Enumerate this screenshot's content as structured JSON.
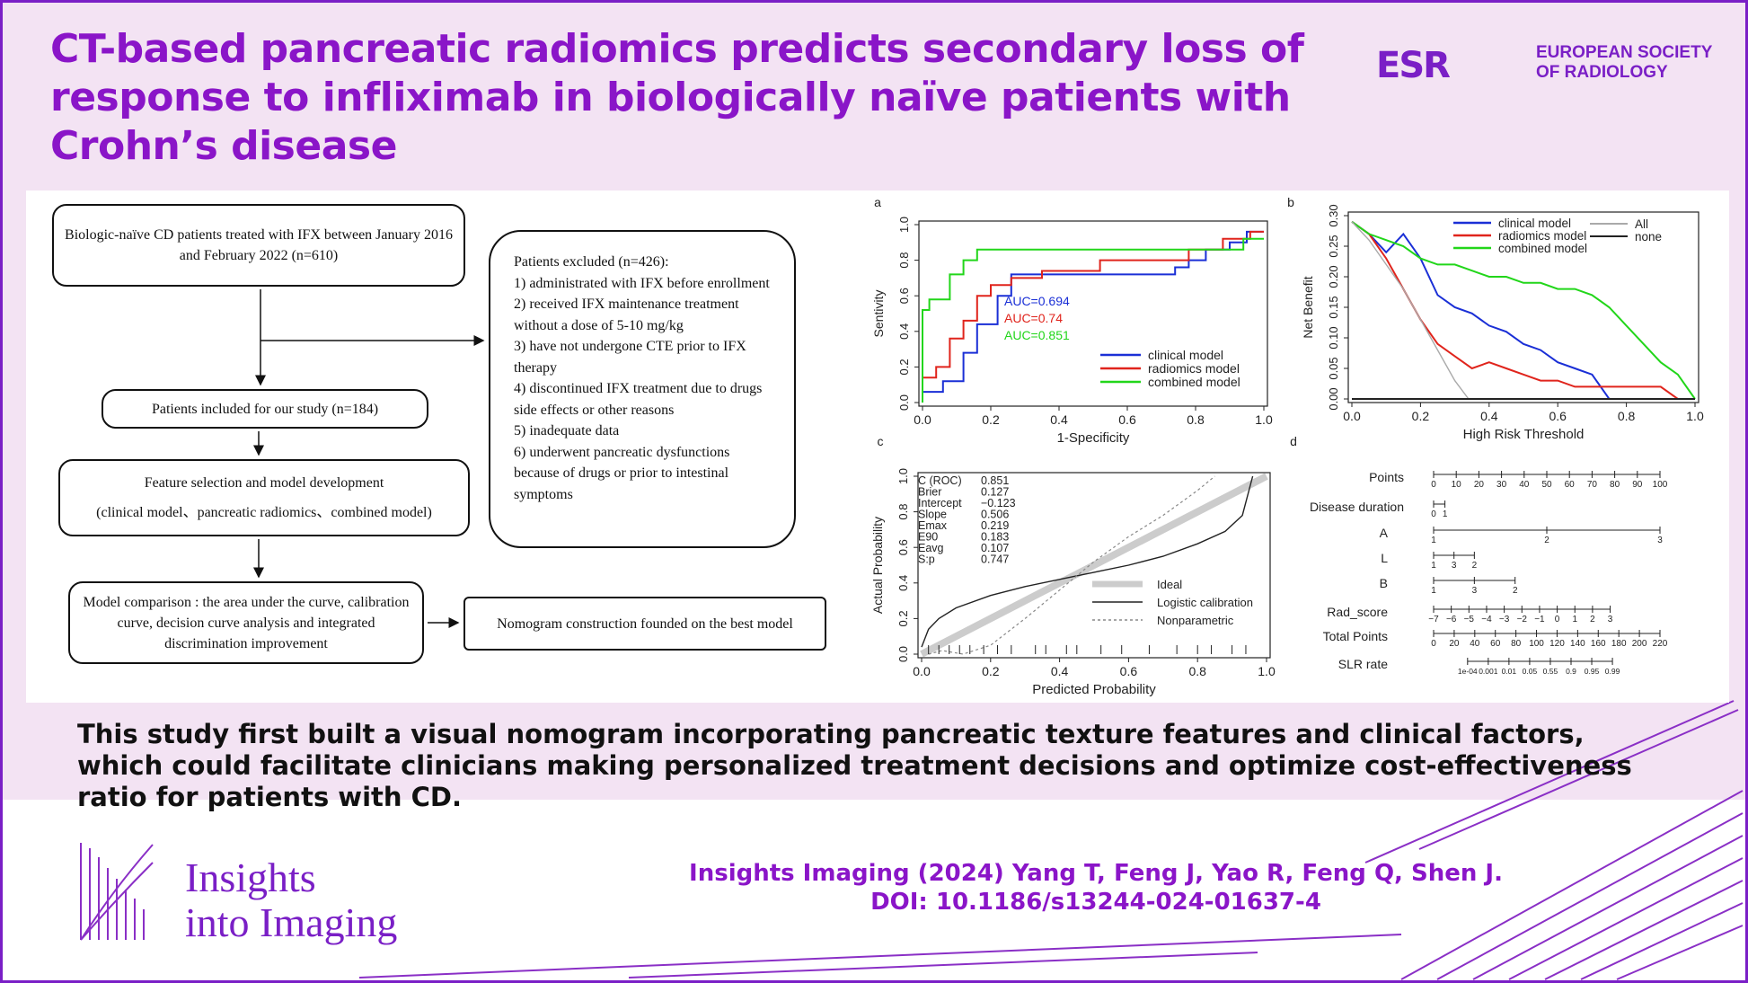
{
  "title": "CT-based pancreatic radiomics predicts secondary loss of response to infliximab in biologically naïve patients with Crohn’s disease",
  "logo": {
    "mark": "ESR",
    "line1": "EUROPEAN SOCIETY",
    "line2": "OF RADIOLOGY"
  },
  "flowchart": {
    "box1": "Biologic-naïve CD patients treated with IFX between January 2016 and February 2022 (n=610)",
    "box2": "Patients included for our study (n=184)",
    "box3_line1": "Feature selection and model development",
    "box3_line2": "(clinical model、pancreatic radiomics、combined model)",
    "box4": "Model comparison : the area under the curve, calibration curve, decision curve analysis and integrated discrimination improvement",
    "box5": "Nomogram construction founded on the best model",
    "excluded_title": "Patients excluded (n=426):",
    "excluded_items": [
      "1) administrated with IFX before enrollment",
      "2) received IFX maintenance treatment without a dose of 5-10 mg/kg",
      "3) have not undergone CTE prior to IFX therapy",
      "4) discontinued IFX treatment due to drugs side effects or other reasons",
      "5) inadequate data",
      "6) underwent pancreatic dysfunctions because of drugs or prior to intestinal symptoms"
    ]
  },
  "chart_data": [
    {
      "type": "line",
      "panel": "a",
      "xlabel": "1-Specificity",
      "ylabel": "Sentivity",
      "xlim": [
        0,
        1
      ],
      "ylim": [
        0,
        1
      ],
      "xticks": [
        "0.0",
        "0.2",
        "0.4",
        "0.6",
        "0.8",
        "1.0"
      ],
      "yticks": [
        "0.0",
        "0.2",
        "0.4",
        "0.6",
        "0.8",
        "1.0"
      ],
      "annotations": [
        "AUC=0.694",
        "AUC=0.74",
        "AUC=0.851"
      ],
      "legend": "bottom-right",
      "series": [
        {
          "name": "clinical model",
          "color": "#1a2fd6",
          "x": [
            0,
            0,
            0.06,
            0.06,
            0.12,
            0.12,
            0.16,
            0.16,
            0.22,
            0.22,
            0.26,
            0.26,
            0.74,
            0.74,
            0.78,
            0.78,
            0.83,
            0.83,
            0.9,
            0.9,
            0.95,
            0.95,
            1
          ],
          "y": [
            0,
            0.06,
            0.06,
            0.12,
            0.12,
            0.28,
            0.28,
            0.44,
            0.44,
            0.6,
            0.6,
            0.72,
            0.72,
            0.76,
            0.76,
            0.8,
            0.8,
            0.86,
            0.86,
            0.9,
            0.9,
            0.96,
            0.96
          ]
        },
        {
          "name": "radiomics model",
          "color": "#e0241c",
          "x": [
            0,
            0,
            0.04,
            0.04,
            0.08,
            0.08,
            0.12,
            0.12,
            0.16,
            0.16,
            0.2,
            0.2,
            0.26,
            0.26,
            0.35,
            0.35,
            0.52,
            0.52,
            0.78,
            0.78,
            0.88,
            0.88,
            0.96,
            0.96,
            1
          ],
          "y": [
            0,
            0.14,
            0.14,
            0.2,
            0.2,
            0.36,
            0.36,
            0.46,
            0.46,
            0.6,
            0.6,
            0.66,
            0.66,
            0.7,
            0.7,
            0.74,
            0.74,
            0.8,
            0.8,
            0.86,
            0.86,
            0.92,
            0.92,
            0.96,
            0.96
          ]
        },
        {
          "name": "combined model",
          "color": "#22d61a",
          "x": [
            0,
            0,
            0.02,
            0.02,
            0.08,
            0.08,
            0.12,
            0.12,
            0.16,
            0.16,
            0.94,
            0.94,
            1
          ],
          "y": [
            0,
            0.52,
            0.52,
            0.58,
            0.58,
            0.72,
            0.72,
            0.8,
            0.8,
            0.86,
            0.86,
            0.92,
            0.92
          ]
        }
      ]
    },
    {
      "type": "line",
      "panel": "b",
      "xlabel": "High Risk Threshold",
      "ylabel": "Net Benefit",
      "xlim": [
        0,
        1
      ],
      "ylim": [
        0,
        0.3
      ],
      "xticks": [
        "0.0",
        "0.2",
        "0.4",
        "0.6",
        "0.8",
        "1.0"
      ],
      "yticks": [
        "0.00",
        "0.05",
        "0.10",
        "0.15",
        "0.20",
        "0.25",
        "0.30"
      ],
      "legend": "top-right",
      "series": [
        {
          "name": "clinical model",
          "color": "#1a2fd6",
          "x": [
            0,
            0.05,
            0.1,
            0.15,
            0.2,
            0.25,
            0.3,
            0.35,
            0.4,
            0.45,
            0.5,
            0.55,
            0.6,
            0.65,
            0.7,
            0.75,
            0.8,
            0.85,
            0.9,
            0.95,
            1
          ],
          "y": [
            0.29,
            0.27,
            0.24,
            0.27,
            0.23,
            0.17,
            0.15,
            0.14,
            0.12,
            0.11,
            0.09,
            0.08,
            0.06,
            0.05,
            0.04,
            0.0,
            0.0,
            0.0,
            0.0,
            0.0,
            0.0
          ]
        },
        {
          "name": "radiomics model",
          "color": "#e0241c",
          "x": [
            0,
            0.05,
            0.1,
            0.15,
            0.2,
            0.25,
            0.3,
            0.35,
            0.4,
            0.45,
            0.5,
            0.55,
            0.6,
            0.65,
            0.7,
            0.75,
            0.8,
            0.85,
            0.9,
            0.95,
            1
          ],
          "y": [
            0.29,
            0.27,
            0.23,
            0.18,
            0.13,
            0.09,
            0.07,
            0.05,
            0.06,
            0.05,
            0.04,
            0.03,
            0.03,
            0.02,
            0.02,
            0.02,
            0.02,
            0.02,
            0.02,
            0.0,
            0.0
          ]
        },
        {
          "name": "combined model",
          "color": "#22d61a",
          "x": [
            0,
            0.05,
            0.1,
            0.15,
            0.2,
            0.25,
            0.3,
            0.35,
            0.4,
            0.45,
            0.5,
            0.55,
            0.6,
            0.65,
            0.7,
            0.75,
            0.8,
            0.85,
            0.9,
            0.95,
            1
          ],
          "y": [
            0.29,
            0.27,
            0.26,
            0.25,
            0.23,
            0.22,
            0.22,
            0.21,
            0.2,
            0.2,
            0.19,
            0.19,
            0.18,
            0.18,
            0.17,
            0.15,
            0.12,
            0.09,
            0.06,
            0.04,
            0.0
          ]
        },
        {
          "name": "All",
          "color": "#aaaaaa",
          "x": [
            0,
            0.05,
            0.1,
            0.15,
            0.2,
            0.25,
            0.3,
            0.34
          ],
          "y": [
            0.29,
            0.26,
            0.22,
            0.18,
            0.13,
            0.08,
            0.03,
            0.0
          ]
        },
        {
          "name": "none",
          "color": "#222222",
          "x": [
            0,
            1
          ],
          "y": [
            0,
            0
          ]
        }
      ]
    },
    {
      "type": "line",
      "panel": "c",
      "xlabel": "Predicted Probability",
      "ylabel": "Actual Probability",
      "xlim": [
        0,
        1
      ],
      "ylim": [
        0,
        1
      ],
      "xticks": [
        "0.0",
        "0.2",
        "0.4",
        "0.6",
        "0.8",
        "1.0"
      ],
      "yticks": [
        "0.0",
        "0.2",
        "0.4",
        "0.6",
        "0.8",
        "1.0"
      ],
      "stats": [
        [
          "C (ROC)",
          "0.851"
        ],
        [
          "Brier",
          "0.127"
        ],
        [
          "Intercept",
          "−0.123"
        ],
        [
          "Slope",
          "0.506"
        ],
        [
          "Emax",
          "0.219"
        ],
        [
          "E90",
          "0.183"
        ],
        [
          "Eavg",
          "0.107"
        ],
        [
          "S:p",
          "0.747"
        ]
      ],
      "legend": "bottom-right",
      "series": [
        {
          "name": "Ideal",
          "color": "#cccccc",
          "x": [
            0,
            1
          ],
          "y": [
            0,
            1
          ]
        },
        {
          "name": "Logistic calibration",
          "color": "#222222",
          "x": [
            0,
            0.02,
            0.05,
            0.1,
            0.2,
            0.3,
            0.4,
            0.5,
            0.6,
            0.7,
            0.8,
            0.88,
            0.93,
            0.96
          ],
          "y": [
            0.04,
            0.14,
            0.2,
            0.26,
            0.33,
            0.38,
            0.42,
            0.46,
            0.5,
            0.55,
            0.62,
            0.69,
            0.78,
            1.0
          ]
        },
        {
          "name": "Nonparametric",
          "color": "#888888",
          "x": [
            0.02,
            0.06,
            0.12,
            0.2,
            0.3,
            0.4,
            0.5,
            0.6,
            0.7,
            0.8,
            0.85
          ],
          "y": [
            0.0,
            0.02,
            0.0,
            0.05,
            0.2,
            0.36,
            0.52,
            0.66,
            0.78,
            0.92,
            1.0
          ]
        }
      ]
    },
    {
      "type": "table",
      "panel": "d",
      "rows": [
        {
          "label": "Points",
          "ticks": [
            "0",
            "10",
            "20",
            "30",
            "40",
            "50",
            "60",
            "70",
            "80",
            "90",
            "100"
          ]
        },
        {
          "label": "Disease duration",
          "ticks": [
            "0",
            "1"
          ]
        },
        {
          "label": "A",
          "ticks": [
            "1",
            "2",
            "3"
          ]
        },
        {
          "label": "L",
          "ticks": [
            "1",
            "3",
            "2"
          ]
        },
        {
          "label": "B",
          "ticks": [
            "1",
            "3",
            "2"
          ]
        },
        {
          "label": "Rad_score",
          "ticks": [
            "−7",
            "−6",
            "−5",
            "−4",
            "−3",
            "−2",
            "−1",
            "0",
            "1",
            "2",
            "3"
          ]
        },
        {
          "label": "Total Points",
          "ticks": [
            "0",
            "20",
            "40",
            "60",
            "80",
            "100",
            "120",
            "140",
            "160",
            "180",
            "200",
            "220"
          ]
        },
        {
          "label": "SLR rate",
          "ticks": [
            "1e-04",
            "0.001",
            "0.01",
            "0.05",
            "0.55",
            "0.9",
            "0.95",
            "0.99"
          ]
        }
      ]
    }
  ],
  "summary": "This study first built a visual nomogram incorporating pancreatic texture features and clinical factors, which could facilitate clinicians making personalized treatment decisions and optimize cost-effectiveness ratio for patients with CD.",
  "journal": {
    "line1": "Insights",
    "line2": "into Imaging"
  },
  "citation": {
    "line1": "Insights Imaging (2024) Yang T, Feng J, Yao R, Feng Q, Shen J.",
    "line2": "DOI: 10.1186/s13244-024-01637-4"
  }
}
